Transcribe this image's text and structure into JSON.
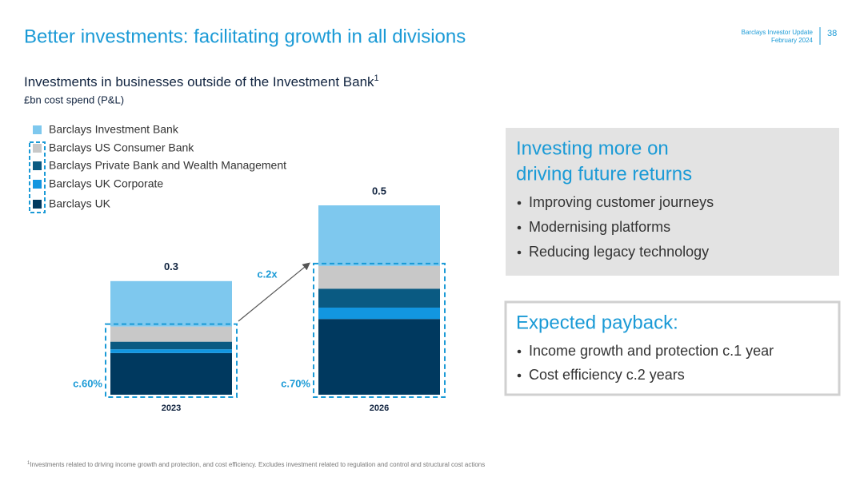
{
  "header": {
    "title": "Better investments: facilitating growth in all divisions",
    "source": "Barclays Investor Update",
    "date": "February 2024",
    "page": "38"
  },
  "chart_data": {
    "type": "bar",
    "stacked": true,
    "title": "Investments in businesses outside of the Investment Bank",
    "title_note": "1",
    "subtitle": "£bn cost spend (P&L)",
    "categories": [
      "2023",
      "2026"
    ],
    "series": [
      {
        "name": "Barclays Investment Bank",
        "color": "#7ec8ee",
        "values": [
          0.12,
          0.16
        ]
      },
      {
        "name": "Barclays US Consumer Bank",
        "color": "#c8c8c8",
        "values": [
          0.04,
          0.06
        ]
      },
      {
        "name": "Barclays Private Bank and Wealth Management",
        "color": "#0a5a82",
        "values": [
          0.02,
          0.05
        ]
      },
      {
        "name": "Barclays UK Corporate",
        "color": "#1296e0",
        "values": [
          0.01,
          0.03
        ]
      },
      {
        "name": "Barclays UK",
        "color": "#00395f",
        "values": [
          0.11,
          0.2
        ]
      }
    ],
    "totals": [
      0.3,
      0.5
    ],
    "share_labels": [
      "c.60%",
      "c.70%"
    ],
    "growth_label": "c.2x"
  },
  "boxes": [
    {
      "title_lines": [
        "Investing more on",
        "driving future returns"
      ],
      "bullets": [
        "Improving customer journeys",
        "Modernising platforms",
        "Reducing legacy technology"
      ]
    },
    {
      "title_lines": [
        "Expected payback:"
      ],
      "bullets": [
        "Income growth and protection c.1 year",
        "Cost efficiency c.2 years"
      ]
    }
  ],
  "footnote": {
    "marker": "1",
    "text": "Investments related to driving income growth and protection, and cost efficiency. Excludes investment related to regulation and control and structural cost actions"
  }
}
